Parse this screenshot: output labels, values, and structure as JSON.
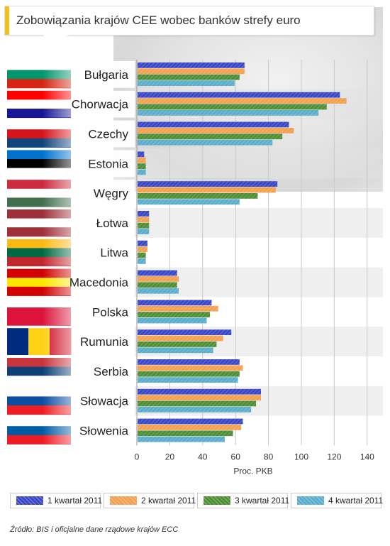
{
  "title": "Zobowiązania krajów CEE wobec banków strefy euro",
  "source": "Źródło: BIS i oficjalne dane rządowe krajów ECC",
  "colors": {
    "series": [
      "#3a48c8",
      "#f2a150",
      "#4e8f35",
      "#5aaecc"
    ],
    "title_accent": "#f3c21a"
  },
  "chart_data": {
    "type": "bar",
    "orientation": "horizontal",
    "categories": [
      "Bułgaria",
      "Chorwacja",
      "Czechy",
      "Estonia",
      "Węgry",
      "Łotwa",
      "Litwa",
      "Macedonia",
      "Polska",
      "Rumunia",
      "Serbia",
      "Słowacja",
      "Słowenia"
    ],
    "series": [
      {
        "name": "1 kwartał 2011",
        "values": [
          65,
          123,
          92,
          4,
          85,
          7,
          6,
          24,
          45,
          57,
          62,
          75,
          64
        ]
      },
      {
        "name": "2 kwartał 2011",
        "values": [
          65,
          127,
          95,
          5,
          84,
          7,
          6,
          25,
          49,
          52,
          64,
          75,
          63
        ]
      },
      {
        "name": "3 kwartał 2011",
        "values": [
          62,
          115,
          88,
          5,
          73,
          7,
          5,
          24,
          44,
          48,
          62,
          72,
          58
        ]
      },
      {
        "name": "4 kwartał 2011",
        "values": [
          59,
          110,
          82,
          5,
          62,
          7,
          5,
          25,
          42,
          46,
          61,
          69,
          53
        ]
      }
    ],
    "xlabel": "Proc. PKB",
    "ylabel": "",
    "xlim": [
      0,
      140
    ],
    "xticks": [
      0,
      20,
      40,
      60,
      80,
      100,
      120,
      140
    ],
    "grid": true,
    "legend_position": "bottom"
  },
  "flags": [
    {
      "country": "Bułgaria",
      "stripes": [
        "#ffffff",
        "#00966e",
        "#d62612"
      ]
    },
    {
      "country": "Chorwacja",
      "stripes": [
        "#ff0000",
        "#ffffff",
        "#171796"
      ]
    },
    {
      "country": "Czechy",
      "stripes": [
        "#ffffff",
        "#d7141a",
        "#11457e"
      ]
    },
    {
      "country": "Estonia",
      "stripes": [
        "#0072ce",
        "#000000",
        "#ffffff"
      ]
    },
    {
      "country": "Węgry",
      "stripes": [
        "#cd2a3e",
        "#ffffff",
        "#436f4d"
      ]
    },
    {
      "country": "Łotwa",
      "stripes": [
        "#9e3039",
        "#ffffff",
        "#9e3039"
      ]
    },
    {
      "country": "Litwa",
      "stripes": [
        "#fdb913",
        "#006a44",
        "#c1272d"
      ]
    },
    {
      "country": "Macedonia",
      "stripes": [
        "#d20000",
        "#ffe600",
        "#d20000"
      ]
    },
    {
      "country": "Polska",
      "stripes": [
        "#ffffff",
        "#dc143c",
        "#dc143c"
      ]
    },
    {
      "country": "Rumunia",
      "stripes": [
        "#002b7f",
        "#fcd116",
        "#ce1126"
      ]
    },
    {
      "country": "Serbia",
      "stripes": [
        "#c6363c",
        "#0c4076",
        "#ffffff"
      ]
    },
    {
      "country": "Słowacja",
      "stripes": [
        "#ffffff",
        "#0b4ea2",
        "#ee1c25"
      ]
    },
    {
      "country": "Słowenia",
      "stripes": [
        "#ffffff",
        "#005da4",
        "#ed1c24"
      ]
    }
  ]
}
